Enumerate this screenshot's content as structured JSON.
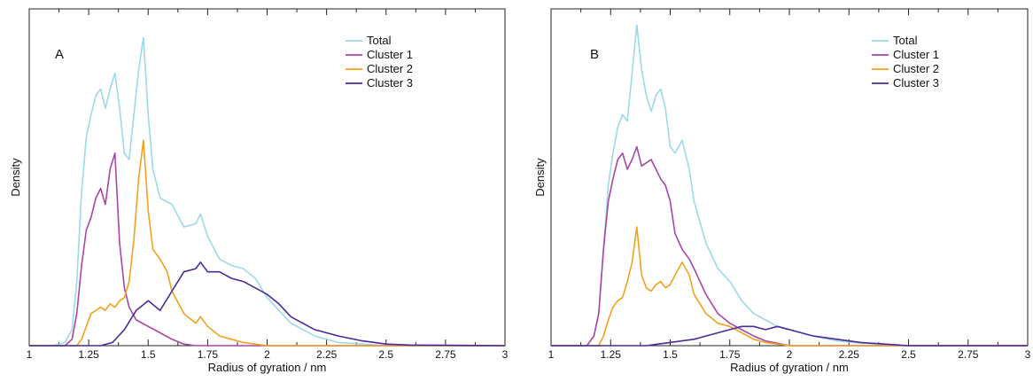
{
  "chart_data": [
    {
      "type": "line",
      "panel_label": "A",
      "xlabel": "Radius of gyration / nm",
      "ylabel": "Density",
      "xlim": [
        1,
        3
      ],
      "xticks": [
        "1",
        "1.25",
        "1.5",
        "1.75",
        "2",
        "2.25",
        "2.5",
        "2.75",
        "3"
      ],
      "ylim": [
        0,
        1
      ],
      "legend_position": "top-right",
      "series": [
        {
          "name": "Total",
          "color": "#9dd9e8",
          "x": [
            1.0,
            1.1,
            1.15,
            1.18,
            1.2,
            1.22,
            1.24,
            1.26,
            1.28,
            1.3,
            1.32,
            1.34,
            1.36,
            1.38,
            1.4,
            1.42,
            1.44,
            1.46,
            1.48,
            1.5,
            1.52,
            1.55,
            1.6,
            1.65,
            1.7,
            1.72,
            1.75,
            1.8,
            1.85,
            1.9,
            1.95,
            2.0,
            2.05,
            2.1,
            2.2,
            2.3,
            2.4,
            2.5,
            3.0
          ],
          "y": [
            0,
            0,
            0.01,
            0.05,
            0.2,
            0.48,
            0.65,
            0.72,
            0.78,
            0.8,
            0.74,
            0.8,
            0.85,
            0.74,
            0.6,
            0.58,
            0.72,
            0.86,
            0.96,
            0.72,
            0.55,
            0.46,
            0.44,
            0.37,
            0.38,
            0.41,
            0.34,
            0.27,
            0.25,
            0.24,
            0.21,
            0.15,
            0.11,
            0.07,
            0.03,
            0.01,
            0.005,
            0,
            0
          ]
        },
        {
          "name": "Cluster 1",
          "color": "#a845a8",
          "x": [
            1.0,
            1.15,
            1.18,
            1.2,
            1.22,
            1.24,
            1.26,
            1.28,
            1.3,
            1.32,
            1.34,
            1.36,
            1.38,
            1.4,
            1.42,
            1.45,
            1.5,
            1.55,
            1.6,
            1.65,
            1.7,
            3.0
          ],
          "y": [
            0,
            0,
            0.02,
            0.1,
            0.25,
            0.36,
            0.4,
            0.46,
            0.49,
            0.44,
            0.55,
            0.6,
            0.32,
            0.18,
            0.12,
            0.08,
            0.06,
            0.04,
            0.02,
            0.005,
            0,
            0
          ]
        },
        {
          "name": "Cluster 2",
          "color": "#f3a01e",
          "x": [
            1.0,
            1.2,
            1.22,
            1.24,
            1.26,
            1.28,
            1.3,
            1.32,
            1.34,
            1.36,
            1.38,
            1.4,
            1.42,
            1.44,
            1.46,
            1.48,
            1.5,
            1.52,
            1.55,
            1.58,
            1.6,
            1.65,
            1.7,
            1.72,
            1.75,
            1.8,
            1.85,
            1.9,
            2.0,
            3.0
          ],
          "y": [
            0,
            0,
            0.02,
            0.06,
            0.1,
            0.11,
            0.12,
            0.11,
            0.13,
            0.12,
            0.14,
            0.15,
            0.2,
            0.33,
            0.52,
            0.64,
            0.42,
            0.3,
            0.27,
            0.23,
            0.17,
            0.1,
            0.07,
            0.09,
            0.06,
            0.03,
            0.02,
            0.01,
            0,
            0
          ]
        },
        {
          "name": "Cluster 3",
          "color": "#4b2a9b",
          "x": [
            1.0,
            1.3,
            1.35,
            1.4,
            1.45,
            1.5,
            1.55,
            1.6,
            1.65,
            1.7,
            1.72,
            1.75,
            1.8,
            1.85,
            1.9,
            1.95,
            2.0,
            2.05,
            2.1,
            2.2,
            2.3,
            2.4,
            2.5,
            2.6,
            3.0
          ],
          "y": [
            0,
            0,
            0.01,
            0.05,
            0.11,
            0.14,
            0.11,
            0.17,
            0.23,
            0.24,
            0.26,
            0.23,
            0.23,
            0.21,
            0.2,
            0.18,
            0.16,
            0.13,
            0.09,
            0.05,
            0.03,
            0.015,
            0.005,
            0.002,
            0
          ]
        }
      ]
    },
    {
      "type": "line",
      "panel_label": "B",
      "xlabel": "Radius of gyration / nm",
      "ylabel": "Density",
      "xlim": [
        1,
        3
      ],
      "xticks": [
        "1",
        "1.25",
        "1.5",
        "1.75",
        "2",
        "2.25",
        "2.5",
        "2.75",
        "3"
      ],
      "ylim": [
        0,
        1
      ],
      "legend_position": "top-right",
      "series": [
        {
          "name": "Total",
          "color": "#9dd9e8",
          "x": [
            1.0,
            1.15,
            1.18,
            1.2,
            1.22,
            1.24,
            1.26,
            1.28,
            1.3,
            1.32,
            1.34,
            1.36,
            1.38,
            1.4,
            1.42,
            1.44,
            1.46,
            1.48,
            1.5,
            1.52,
            1.55,
            1.58,
            1.6,
            1.65,
            1.7,
            1.75,
            1.8,
            1.85,
            1.9,
            1.95,
            2.0,
            2.05,
            2.1,
            2.2,
            2.3,
            2.4,
            2.5,
            3.0
          ],
          "y": [
            0,
            0,
            0.03,
            0.1,
            0.3,
            0.5,
            0.6,
            0.68,
            0.72,
            0.7,
            0.85,
            1.0,
            0.86,
            0.78,
            0.73,
            0.78,
            0.8,
            0.74,
            0.62,
            0.6,
            0.64,
            0.55,
            0.45,
            0.32,
            0.24,
            0.2,
            0.14,
            0.1,
            0.08,
            0.06,
            0.05,
            0.04,
            0.03,
            0.015,
            0.008,
            0.003,
            0,
            0
          ]
        },
        {
          "name": "Cluster 1",
          "color": "#a845a8",
          "x": [
            1.0,
            1.15,
            1.18,
            1.2,
            1.22,
            1.24,
            1.26,
            1.28,
            1.3,
            1.32,
            1.34,
            1.36,
            1.38,
            1.4,
            1.42,
            1.44,
            1.46,
            1.48,
            1.5,
            1.52,
            1.55,
            1.58,
            1.6,
            1.65,
            1.7,
            1.75,
            1.8,
            1.85,
            1.9,
            2.0,
            3.0
          ],
          "y": [
            0,
            0,
            0.03,
            0.1,
            0.3,
            0.45,
            0.52,
            0.58,
            0.6,
            0.55,
            0.58,
            0.62,
            0.56,
            0.57,
            0.58,
            0.55,
            0.52,
            0.5,
            0.45,
            0.35,
            0.3,
            0.27,
            0.24,
            0.16,
            0.1,
            0.07,
            0.05,
            0.03,
            0.015,
            0,
            0
          ]
        },
        {
          "name": "Cluster 2",
          "color": "#f3a01e",
          "x": [
            1.0,
            1.2,
            1.22,
            1.24,
            1.26,
            1.28,
            1.3,
            1.32,
            1.34,
            1.36,
            1.38,
            1.4,
            1.42,
            1.44,
            1.46,
            1.48,
            1.5,
            1.52,
            1.55,
            1.58,
            1.6,
            1.65,
            1.7,
            1.75,
            1.8,
            1.85,
            1.9,
            1.95,
            2.0,
            3.0
          ],
          "y": [
            0,
            0,
            0.03,
            0.08,
            0.12,
            0.14,
            0.15,
            0.2,
            0.26,
            0.37,
            0.22,
            0.18,
            0.17,
            0.19,
            0.2,
            0.18,
            0.19,
            0.22,
            0.26,
            0.22,
            0.16,
            0.1,
            0.07,
            0.06,
            0.04,
            0.02,
            0.01,
            0.005,
            0,
            0
          ]
        },
        {
          "name": "Cluster 3",
          "color": "#4b2a9b",
          "x": [
            1.0,
            1.4,
            1.45,
            1.5,
            1.55,
            1.6,
            1.65,
            1.7,
            1.75,
            1.8,
            1.85,
            1.9,
            1.95,
            2.0,
            2.05,
            2.1,
            2.2,
            2.3,
            2.4,
            2.5,
            3.0
          ],
          "y": [
            0,
            0,
            0.005,
            0.01,
            0.015,
            0.02,
            0.03,
            0.04,
            0.05,
            0.06,
            0.06,
            0.05,
            0.06,
            0.05,
            0.04,
            0.03,
            0.02,
            0.01,
            0.005,
            0,
            0
          ]
        }
      ]
    }
  ]
}
